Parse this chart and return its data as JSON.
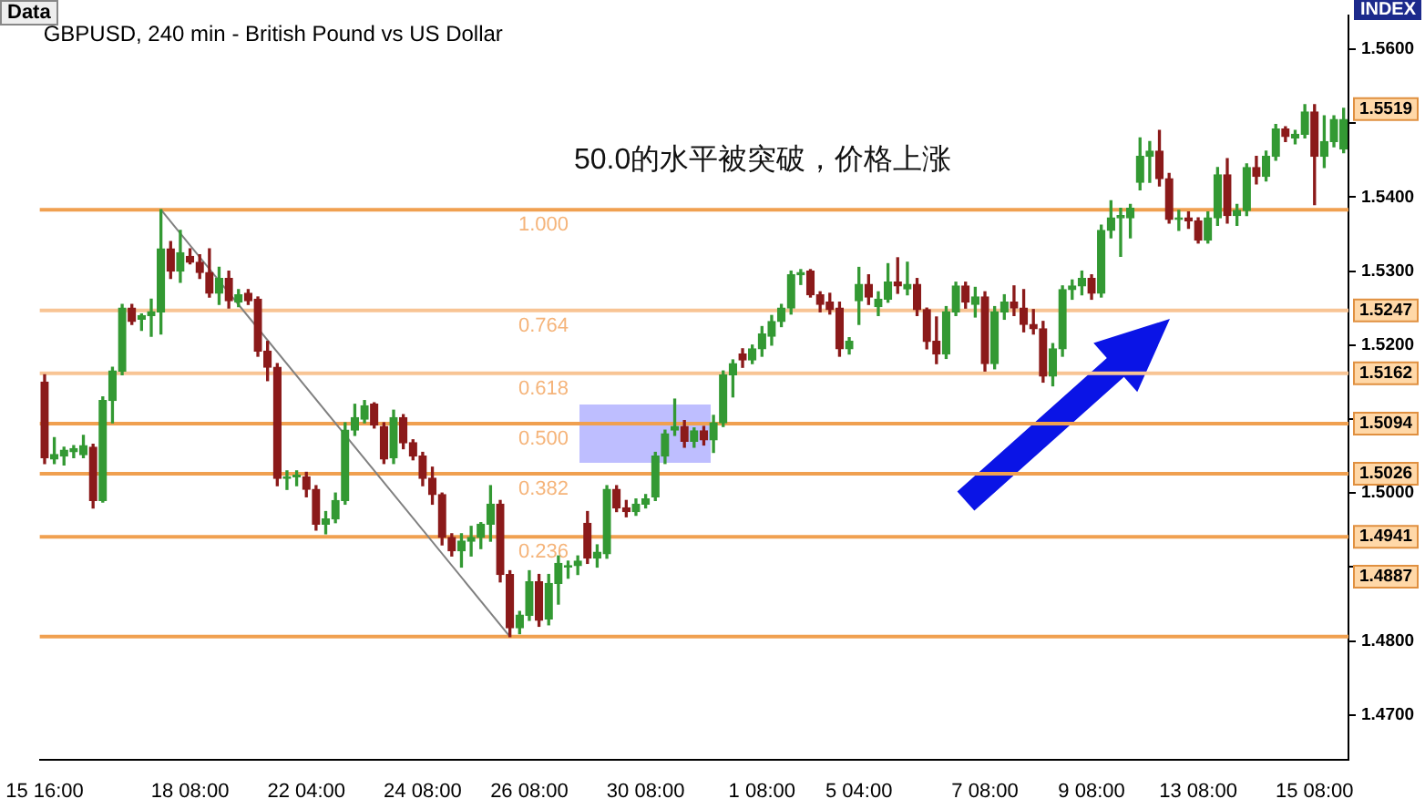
{
  "chart_data": {
    "type": "candlestick",
    "title": "GBPUSD, 240 min - British Pound vs US Dollar",
    "categories": [
      "15 16:00",
      null,
      null,
      null,
      null,
      null,
      null,
      null,
      null,
      null,
      null,
      null,
      null,
      null,
      null,
      "18 08:00",
      null,
      null,
      null,
      null,
      null,
      null,
      null,
      null,
      null,
      null,
      null,
      "22 04:00",
      null,
      null,
      null,
      null,
      null,
      null,
      null,
      null,
      null,
      null,
      null,
      "24 08:00",
      null,
      null,
      null,
      null,
      null,
      null,
      null,
      null,
      null,
      null,
      "26 08:00",
      null,
      null,
      null,
      null,
      null,
      null,
      null,
      null,
      null,
      null,
      null,
      "30 08:00",
      null,
      null,
      null,
      null,
      null,
      null,
      null,
      null,
      null,
      null,
      null,
      "1 08:00",
      null,
      null,
      null,
      null,
      null,
      null,
      null,
      null,
      null,
      "5 04:00",
      null,
      null,
      null,
      null,
      null,
      null,
      null,
      null,
      null,
      null,
      null,
      null,
      "7 08:00",
      null,
      null,
      null,
      null,
      null,
      null,
      null,
      null,
      null,
      null,
      "9 08:00",
      null,
      null,
      null,
      null,
      null,
      null,
      null,
      null,
      null,
      null,
      "13 08:00",
      null,
      null,
      null,
      null,
      null,
      null,
      null,
      null,
      null,
      null,
      null,
      "15 08:00",
      null,
      null,
      null
    ],
    "ohlc": [
      [
        1.515,
        1.516,
        1.504,
        1.5048
      ],
      [
        1.5046,
        1.5075,
        1.504,
        1.5052
      ],
      [
        1.505,
        1.5062,
        1.5038,
        1.5058
      ],
      [
        1.5056,
        1.5064,
        1.5048,
        1.506
      ],
      [
        1.5052,
        1.5078,
        1.5048,
        1.5064
      ],
      [
        1.5062,
        1.5066,
        1.498,
        1.499
      ],
      [
        1.499,
        1.513,
        1.4988,
        1.5125
      ],
      [
        1.5125,
        1.517,
        1.5095,
        1.5165
      ],
      [
        1.5165,
        1.5255,
        1.516,
        1.525
      ],
      [
        1.525,
        1.5255,
        1.5228,
        1.5232
      ],
      [
        1.5235,
        1.5242,
        1.522,
        1.524
      ],
      [
        1.524,
        1.5262,
        1.5212,
        1.5245
      ],
      [
        1.5245,
        1.5383,
        1.5215,
        1.533
      ],
      [
        1.533,
        1.534,
        1.529,
        1.53
      ],
      [
        1.53,
        1.5355,
        1.5285,
        1.5325
      ],
      [
        1.532,
        1.533,
        1.531,
        1.5312
      ],
      [
        1.5312,
        1.5322,
        1.529,
        1.5298
      ],
      [
        1.5298,
        1.533,
        1.5265,
        1.527
      ],
      [
        1.527,
        1.5305,
        1.5255,
        1.529
      ],
      [
        1.529,
        1.53,
        1.525,
        1.526
      ],
      [
        1.5258,
        1.5275,
        1.5252,
        1.5268
      ],
      [
        1.527,
        1.5275,
        1.5255,
        1.526
      ],
      [
        1.5262,
        1.5265,
        1.5185,
        1.5192
      ],
      [
        1.5192,
        1.5205,
        1.5152,
        1.517
      ],
      [
        1.517,
        1.5175,
        1.501,
        1.502
      ],
      [
        1.502,
        1.503,
        1.5005,
        1.5022
      ],
      [
        1.5022,
        1.503,
        1.501,
        1.5024
      ],
      [
        1.5022,
        1.5028,
        1.4995,
        1.5005
      ],
      [
        1.5005,
        1.501,
        1.495,
        1.4958
      ],
      [
        1.4958,
        1.4975,
        1.4945,
        1.4965
      ],
      [
        1.4965,
        1.5,
        1.496,
        1.499
      ],
      [
        1.499,
        1.5095,
        1.4985,
        1.5085
      ],
      [
        1.5085,
        1.512,
        1.5078,
        1.5102
      ],
      [
        1.51,
        1.5125,
        1.5095,
        1.5118
      ],
      [
        1.512,
        1.5122,
        1.5088,
        1.5092
      ],
      [
        1.509,
        1.5095,
        1.504,
        1.5046
      ],
      [
        1.5048,
        1.5112,
        1.504,
        1.5102
      ],
      [
        1.5102,
        1.5106,
        1.506,
        1.5068
      ],
      [
        1.5068,
        1.5072,
        1.5045,
        1.505
      ],
      [
        1.505,
        1.5055,
        1.501,
        1.502
      ],
      [
        1.502,
        1.5035,
        1.4985,
        1.4998
      ],
      [
        1.4998,
        1.5,
        1.493,
        1.494
      ],
      [
        1.494,
        1.4945,
        1.4915,
        1.4922
      ],
      [
        1.4922,
        1.4945,
        1.49,
        1.4935
      ],
      [
        1.4935,
        1.4955,
        1.4915,
        1.494
      ],
      [
        1.494,
        1.496,
        1.4925,
        1.4958
      ],
      [
        1.4958,
        1.501,
        1.4935,
        1.4985
      ],
      [
        1.4985,
        1.499,
        1.488,
        1.489
      ],
      [
        1.489,
        1.4895,
        1.4806,
        1.4818
      ],
      [
        1.4818,
        1.484,
        1.481,
        1.4835
      ],
      [
        1.4835,
        1.4895,
        1.4828,
        1.488
      ],
      [
        1.488,
        1.489,
        1.482,
        1.4828
      ],
      [
        1.483,
        1.489,
        1.4822,
        1.4878
      ],
      [
        1.4878,
        1.4915,
        1.485,
        1.4905
      ],
      [
        1.49,
        1.4908,
        1.4885,
        1.4902
      ],
      [
        1.4902,
        1.4915,
        1.489,
        1.4908
      ],
      [
        1.4959,
        1.4975,
        1.4905,
        1.4912
      ],
      [
        1.4912,
        1.493,
        1.49,
        1.492
      ],
      [
        1.4918,
        1.501,
        1.4912,
        1.5005
      ],
      [
        1.5005,
        1.501,
        1.4975,
        1.498
      ],
      [
        1.498,
        1.499,
        1.4968,
        1.4975
      ],
      [
        1.4975,
        1.4992,
        1.497,
        1.4985
      ],
      [
        1.4985,
        1.4998,
        1.498,
        1.4992
      ],
      [
        1.4995,
        1.5055,
        1.499,
        1.505
      ],
      [
        1.505,
        1.5085,
        1.504,
        1.508
      ],
      [
        1.5085,
        1.5127,
        1.5078,
        1.509
      ],
      [
        1.509,
        1.5098,
        1.5062,
        1.507
      ],
      [
        1.507,
        1.5088,
        1.5062,
        1.5084
      ],
      [
        1.5084,
        1.509,
        1.5065,
        1.5072
      ],
      [
        1.5072,
        1.5105,
        1.5055,
        1.5095
      ],
      [
        1.5095,
        1.5165,
        1.509,
        1.516
      ],
      [
        1.516,
        1.518,
        1.513,
        1.5175
      ],
      [
        1.5188,
        1.5195,
        1.517,
        1.518
      ],
      [
        1.518,
        1.52,
        1.5175,
        1.5195
      ],
      [
        1.5195,
        1.5225,
        1.5185,
        1.5215
      ],
      [
        1.5212,
        1.524,
        1.52,
        1.5232
      ],
      [
        1.5232,
        1.5255,
        1.5225,
        1.525
      ],
      [
        1.525,
        1.53,
        1.5242,
        1.5295
      ],
      [
        1.5295,
        1.5302,
        1.5282,
        1.5298
      ],
      [
        1.53,
        1.5302,
        1.5265,
        1.5268
      ],
      [
        1.5268,
        1.5272,
        1.5245,
        1.5255
      ],
      [
        1.5258,
        1.527,
        1.5242,
        1.5248
      ],
      [
        1.525,
        1.5258,
        1.5185,
        1.5195
      ],
      [
        1.5195,
        1.521,
        1.5188,
        1.5205
      ],
      [
        1.526,
        1.5305,
        1.5228,
        1.5282
      ],
      [
        1.5282,
        1.5295,
        1.5255,
        1.5265
      ],
      [
        1.5252,
        1.5272,
        1.524,
        1.5262
      ],
      [
        1.5262,
        1.531,
        1.5258,
        1.5285
      ],
      [
        1.5285,
        1.5318,
        1.527,
        1.528
      ],
      [
        1.5276,
        1.5312,
        1.5268,
        1.5282
      ],
      [
        1.5282,
        1.529,
        1.524,
        1.5248
      ],
      [
        1.5248,
        1.525,
        1.5195,
        1.5205
      ],
      [
        1.5205,
        1.5238,
        1.5175,
        1.5188
      ],
      [
        1.5188,
        1.5252,
        1.5182,
        1.5245
      ],
      [
        1.5245,
        1.5285,
        1.524,
        1.528
      ],
      [
        1.528,
        1.5285,
        1.525,
        1.5258
      ],
      [
        1.5255,
        1.5278,
        1.5238,
        1.5265
      ],
      [
        1.5265,
        1.5272,
        1.5165,
        1.5175
      ],
      [
        1.5175,
        1.5252,
        1.5168,
        1.5245
      ],
      [
        1.5245,
        1.5268,
        1.5235,
        1.5258
      ],
      [
        1.5258,
        1.528,
        1.524,
        1.525
      ],
      [
        1.525,
        1.5275,
        1.5218,
        1.5228
      ],
      [
        1.5228,
        1.5248,
        1.5215,
        1.5222
      ],
      [
        1.5222,
        1.5232,
        1.515,
        1.5158
      ],
      [
        1.5158,
        1.5202,
        1.5145,
        1.5195
      ],
      [
        1.5195,
        1.528,
        1.5185,
        1.5275
      ],
      [
        1.5275,
        1.5288,
        1.5262,
        1.528
      ],
      [
        1.528,
        1.53,
        1.5268,
        1.529
      ],
      [
        1.529,
        1.5295,
        1.5262,
        1.527
      ],
      [
        1.527,
        1.5362,
        1.5265,
        1.5355
      ],
      [
        1.5355,
        1.5395,
        1.5345,
        1.5372
      ],
      [
        1.5372,
        1.5385,
        1.532,
        1.5375
      ],
      [
        1.5372,
        1.539,
        1.5345,
        1.5385
      ],
      [
        1.542,
        1.548,
        1.541,
        1.5455
      ],
      [
        1.5455,
        1.5475,
        1.542,
        1.5462
      ],
      [
        1.5462,
        1.549,
        1.5415,
        1.5425
      ],
      [
        1.5425,
        1.5432,
        1.5365,
        1.537
      ],
      [
        1.537,
        1.5382,
        1.5355,
        1.5372
      ],
      [
        1.5372,
        1.538,
        1.5358,
        1.5368
      ],
      [
        1.5368,
        1.5372,
        1.5338,
        1.5342
      ],
      [
        1.5342,
        1.538,
        1.5338,
        1.5372
      ],
      [
        1.5372,
        1.544,
        1.5362,
        1.543
      ],
      [
        1.543,
        1.5452,
        1.5365,
        1.5375
      ],
      [
        1.5375,
        1.539,
        1.5362,
        1.5382
      ],
      [
        1.5382,
        1.5445,
        1.5375,
        1.544
      ],
      [
        1.544,
        1.5455,
        1.5418,
        1.5428
      ],
      [
        1.5428,
        1.5462,
        1.5422,
        1.5455
      ],
      [
        1.5455,
        1.5498,
        1.545,
        1.5492
      ],
      [
        1.5492,
        1.5495,
        1.5475,
        1.5482
      ],
      [
        1.548,
        1.549,
        1.5472,
        1.5485
      ],
      [
        1.5485,
        1.5525,
        1.548,
        1.5515
      ],
      [
        1.5515,
        1.5525,
        1.539,
        1.5455
      ],
      [
        1.5455,
        1.551,
        1.544,
        1.5475
      ],
      [
        1.5475,
        1.551,
        1.5468,
        1.5505
      ],
      [
        1.5465,
        1.552,
        1.546,
        1.5505
      ]
    ],
    "colors": [
      "#8b1a1a",
      "#339933",
      "#339933",
      "#339933",
      "#339933",
      "#8b1a1a",
      "#339933",
      "#339933",
      "#339933",
      "#8b1a1a",
      "#339933",
      "#339933",
      "#339933",
      "#8b1a1a",
      "#339933",
      "#8b1a1a",
      "#8b1a1a",
      "#8b1a1a",
      "#339933",
      "#8b1a1a",
      "#339933",
      "#8b1a1a",
      "#8b1a1a",
      "#8b1a1a",
      "#8b1a1a",
      "#339933",
      "#339933",
      "#8b1a1a",
      "#8b1a1a",
      "#339933",
      "#339933",
      "#339933",
      "#339933",
      "#339933",
      "#8b1a1a",
      "#8b1a1a",
      "#339933",
      "#8b1a1a",
      "#8b1a1a",
      "#8b1a1a",
      "#8b1a1a",
      "#8b1a1a",
      "#8b1a1a",
      "#339933",
      "#339933",
      "#339933",
      "#339933",
      "#8b1a1a",
      "#8b1a1a",
      "#339933",
      "#339933",
      "#8b1a1a",
      "#339933",
      "#339933",
      "#339933",
      "#339933",
      "#8b1a1a",
      "#339933",
      "#339933",
      "#8b1a1a",
      "#8b1a1a",
      "#339933",
      "#339933",
      "#339933",
      "#339933",
      "#339933",
      "#8b1a1a",
      "#339933",
      "#8b1a1a",
      "#339933",
      "#339933",
      "#339933",
      "#8b1a1a",
      "#339933",
      "#339933",
      "#339933",
      "#339933",
      "#339933",
      "#339933",
      "#8b1a1a",
      "#8b1a1a",
      "#8b1a1a",
      "#8b1a1a",
      "#339933",
      "#339933",
      "#8b1a1a",
      "#339933",
      "#339933",
      "#8b1a1a",
      "#339933",
      "#8b1a1a",
      "#8b1a1a",
      "#8b1a1a",
      "#339933",
      "#339933",
      "#8b1a1a",
      "#339933",
      "#8b1a1a",
      "#339933",
      "#339933",
      "#8b1a1a",
      "#8b1a1a",
      "#8b1a1a",
      "#8b1a1a",
      "#339933",
      "#339933",
      "#339933",
      "#339933",
      "#8b1a1a",
      "#339933",
      "#339933",
      "#339933",
      "#339933",
      "#339933",
      "#339933",
      "#8b1a1a",
      "#8b1a1a",
      "#339933",
      "#8b1a1a",
      "#8b1a1a",
      "#339933",
      "#339933",
      "#8b1a1a",
      "#339933",
      "#339933",
      "#8b1a1a",
      "#339933",
      "#339933",
      "#8b1a1a",
      "#339933",
      "#339933",
      "#8b1a1a",
      "#339933",
      "#339933",
      "#339933"
    ],
    "series": [
      {
        "type": "line",
        "color": "#808080",
        "values": [
          null,
          null,
          null,
          null,
          null,
          null,
          null,
          null,
          null,
          null,
          null,
          null,
          1.5383,
          null,
          null,
          null,
          null,
          null,
          null,
          null,
          null,
          null,
          null,
          null,
          null,
          null,
          null,
          null,
          null,
          null,
          null,
          null,
          null,
          null,
          null,
          null,
          null,
          null,
          null,
          null,
          null,
          null,
          null,
          null,
          null,
          null,
          null,
          null,
          1.4806,
          null,
          null,
          null,
          null,
          null,
          null,
          null,
          null,
          null,
          null,
          null,
          null,
          null,
          null,
          null,
          null,
          null,
          null,
          null,
          null,
          null,
          null,
          null,
          null,
          null,
          null,
          null,
          null,
          null,
          null,
          null,
          null,
          null,
          null,
          null,
          null,
          null,
          null,
          null,
          null,
          null,
          null,
          null,
          null,
          null,
          null,
          null,
          null,
          null,
          null,
          null,
          null,
          null,
          null,
          null,
          null,
          null,
          null,
          null,
          null,
          null,
          null,
          null,
          null,
          null,
          null,
          null,
          null,
          null,
          null,
          null,
          null,
          null,
          null,
          null,
          null,
          null,
          null,
          null,
          null,
          null,
          null,
          null,
          null,
          null,
          null
        ]
      }
    ],
    "ylim": [
      1.464,
      1.5645
    ],
    "yticks": [
      {
        "value": 1.47,
        "label": "1.4700"
      },
      {
        "value": 1.48,
        "label": "1.4800"
      },
      {
        "value": 1.49,
        "label": null
      },
      {
        "value": 1.5,
        "label": "1.5000"
      },
      {
        "value": 1.51,
        "label": null
      },
      {
        "value": 1.52,
        "label": "1.5200"
      },
      {
        "value": 1.53,
        "label": "1.5300"
      },
      {
        "value": 1.54,
        "label": "1.5400"
      },
      {
        "value": 1.55,
        "label": null
      },
      {
        "value": 1.56,
        "label": "1.5600"
      }
    ],
    "ref_lines": [
      {
        "axis": "y",
        "value": 1.5383,
        "label": null,
        "color": "#f0a050"
      },
      {
        "axis": "y",
        "value": 1.5247,
        "label": "1.5247",
        "color": "#f8c494"
      },
      {
        "axis": "y",
        "value": 1.5162,
        "label": "1.5162",
        "color": "#f8c494"
      },
      {
        "axis": "y",
        "value": 1.5094,
        "label": "1.5094",
        "color": "#f0a050"
      },
      {
        "axis": "y",
        "value": 1.5026,
        "label": "1.5026",
        "color": "#f0a050"
      },
      {
        "axis": "y",
        "value": 1.4941,
        "label": "1.4941",
        "color": "#f0a050"
      },
      {
        "axis": "y",
        "value": 1.4806,
        "label": null,
        "color": "#f0a050"
      }
    ],
    "annotations": [
      "Data",
      "INDEX",
      "50.0的水平被突破，价格上涨",
      {
        "text": "1.000",
        "x": "26 08:00",
        "y": 1.5383
      },
      {
        "text": "0.764",
        "x": "26 08:00",
        "y": 1.5247
      },
      {
        "text": "0.618",
        "x": "26 08:00",
        "y": 1.5162
      },
      {
        "text": "0.500",
        "x": "26 08:00",
        "y": 1.5094
      },
      {
        "text": "0.382",
        "x": "26 08:00",
        "y": 1.5026
      },
      {
        "text": "0.236",
        "x": "26 08:00",
        "y": 1.4941
      },
      {
        "text": "1.5519",
        "y": 1.5519
      },
      {
        "text": "1.4887",
        "y": 1.4887
      }
    ],
    "grid": false,
    "legend": false,
    "marker": "none",
    "line_style": "solid"
  }
}
